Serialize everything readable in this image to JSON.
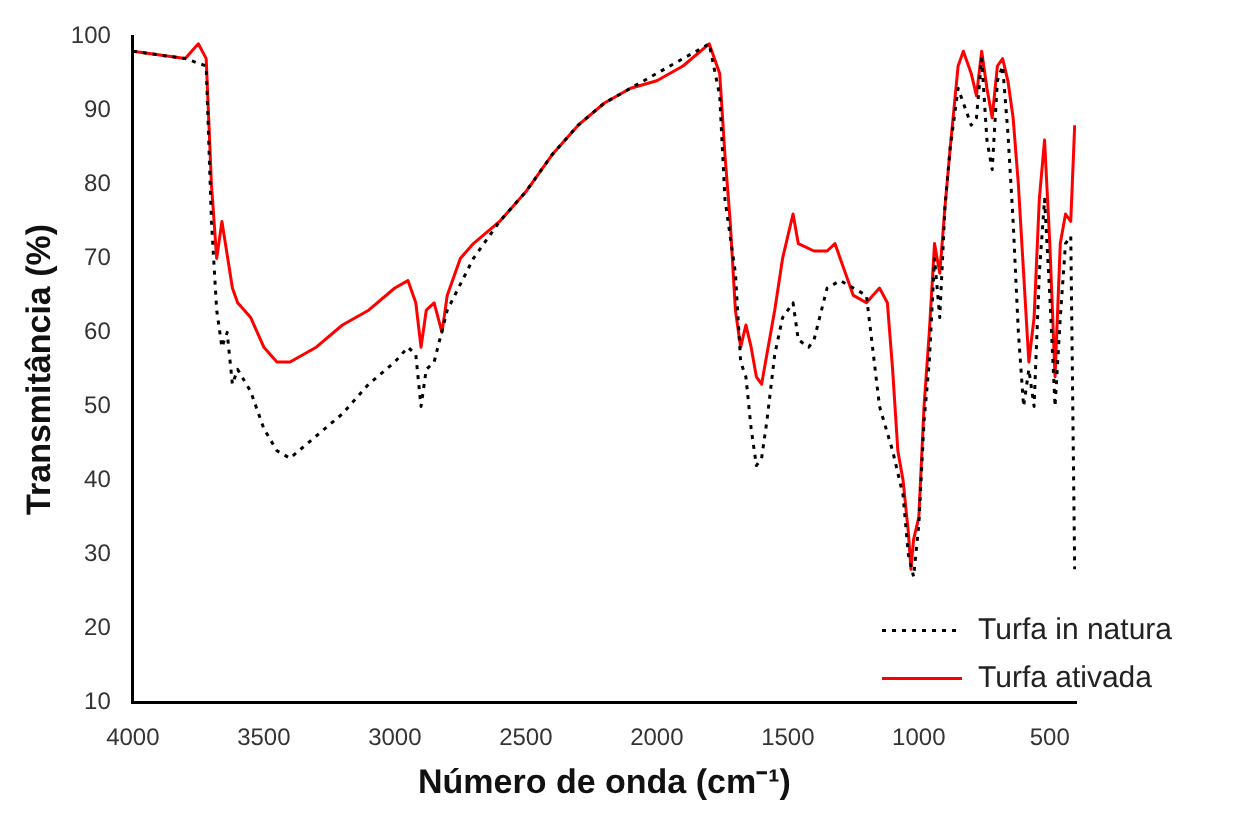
{
  "chart_data": {
    "type": "line",
    "xlabel": "Número de onda (cm⁻¹)",
    "ylabel": "Transmitância (%)",
    "xlim": [
      4000,
      400
    ],
    "xticks": [
      4000,
      3500,
      3000,
      2500,
      2000,
      1500,
      1000,
      500
    ],
    "ylim": [
      10,
      100
    ],
    "yticks": [
      10,
      20,
      30,
      40,
      50,
      60,
      70,
      80,
      90,
      100
    ],
    "grid": false,
    "legend": "bottom right",
    "marker": "none",
    "series": [
      {
        "name": "Turfa in natura",
        "color": "#000000",
        "line_style": "dotted",
        "x": [
          4000,
          3800,
          3720,
          3700,
          3680,
          3660,
          3640,
          3620,
          3600,
          3550,
          3500,
          3450,
          3400,
          3300,
          3200,
          3100,
          3000,
          2950,
          2920,
          2900,
          2880,
          2850,
          2800,
          2700,
          2600,
          2500,
          2400,
          2300,
          2200,
          2100,
          2000,
          1900,
          1800,
          1760,
          1740,
          1700,
          1680,
          1660,
          1640,
          1620,
          1600,
          1580,
          1550,
          1520,
          1500,
          1480,
          1460,
          1420,
          1400,
          1350,
          1300,
          1250,
          1200,
          1150,
          1100,
          1060,
          1040,
          1020,
          1000,
          980,
          960,
          940,
          920,
          900,
          880,
          850,
          820,
          800,
          780,
          760,
          740,
          720,
          700,
          680,
          660,
          640,
          620,
          600,
          580,
          560,
          540,
          520,
          500,
          480,
          460,
          440,
          420,
          405
        ],
        "values": [
          98,
          97,
          96,
          75,
          63,
          58,
          60,
          53,
          55,
          52,
          47,
          44,
          43,
          46,
          49,
          53,
          56,
          58,
          57,
          50,
          55,
          56,
          63,
          70,
          75,
          79,
          84,
          88,
          91,
          93,
          95,
          97,
          99,
          92,
          78,
          68,
          56,
          54,
          47,
          42,
          43,
          48,
          57,
          62,
          63,
          64,
          59,
          58,
          59,
          66,
          67,
          66,
          65,
          50,
          44,
          38,
          30,
          27,
          34,
          48,
          56,
          70,
          62,
          77,
          85,
          93,
          90,
          88,
          89,
          97,
          86,
          82,
          94,
          96,
          87,
          75,
          60,
          50,
          55,
          50,
          68,
          78,
          65,
          50,
          62,
          72,
          73,
          28
        ]
      },
      {
        "name": "Turfa ativada",
        "color": "#ff0000",
        "line_style": "solid",
        "x": [
          4000,
          3800,
          3750,
          3720,
          3700,
          3680,
          3660,
          3620,
          3600,
          3550,
          3500,
          3450,
          3400,
          3300,
          3200,
          3100,
          3000,
          2950,
          2920,
          2900,
          2880,
          2850,
          2820,
          2800,
          2750,
          2700,
          2600,
          2500,
          2400,
          2300,
          2200,
          2100,
          2000,
          1900,
          1800,
          1760,
          1740,
          1720,
          1700,
          1680,
          1660,
          1640,
          1620,
          1600,
          1580,
          1550,
          1520,
          1500,
          1480,
          1460,
          1400,
          1350,
          1320,
          1300,
          1250,
          1200,
          1150,
          1120,
          1100,
          1080,
          1060,
          1040,
          1030,
          1020,
          1000,
          980,
          960,
          940,
          920,
          900,
          880,
          850,
          830,
          800,
          780,
          760,
          740,
          720,
          700,
          680,
          660,
          640,
          620,
          600,
          580,
          560,
          540,
          520,
          500,
          480,
          460,
          440,
          420,
          405
        ],
        "values": [
          98,
          97,
          99,
          97,
          80,
          70,
          75,
          66,
          64,
          62,
          58,
          56,
          56,
          58,
          61,
          63,
          66,
          67,
          64,
          58,
          63,
          64,
          60,
          65,
          70,
          72,
          75,
          79,
          84,
          88,
          91,
          93,
          94,
          96,
          99,
          95,
          84,
          75,
          63,
          58,
          61,
          58,
          54,
          53,
          57,
          63,
          70,
          73,
          76,
          72,
          71,
          71,
          72,
          70,
          65,
          64,
          66,
          64,
          55,
          44,
          40,
          33,
          28,
          32,
          35,
          50,
          60,
          72,
          68,
          77,
          85,
          96,
          98,
          95,
          92,
          98,
          93,
          89,
          96,
          97,
          94,
          89,
          80,
          68,
          56,
          62,
          78,
          86,
          72,
          54,
          72,
          76,
          75,
          88
        ]
      }
    ]
  }
}
